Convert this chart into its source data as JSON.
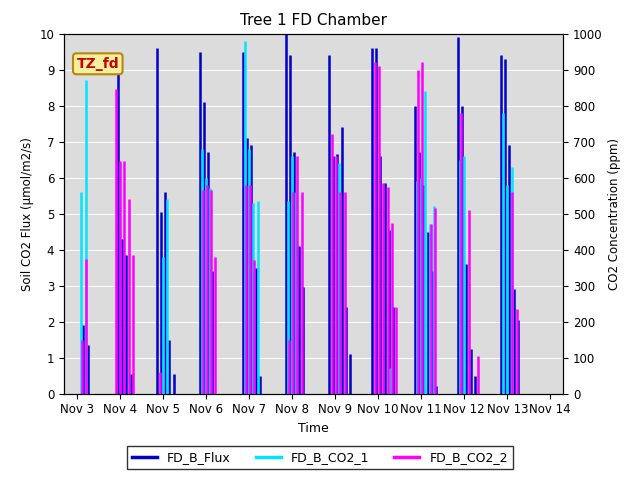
{
  "title": "Tree 1 FD Chamber",
  "xlabel": "Time",
  "ylabel_left": "Soil CO2 Flux (μmol/m2/s)",
  "ylabel_right": "CO2 Concentration (ppm)",
  "ylim_left": [
    0,
    10.0
  ],
  "ylim_right": [
    0,
    1000
  ],
  "plot_bg_color": "#dcdcdc",
  "fig_bg_color": "#ffffff",
  "annotation_text": "TZ_fd",
  "annotation_color": "#cc0000",
  "annotation_bg": "#f5f0a0",
  "annotation_border": "#b8860b",
  "flux_color": "#0000cc",
  "co2_1_color": "#00e5ff",
  "co2_2_color": "#ff00ff",
  "linewidth": 1.8,
  "x_tick_labels": [
    "Nov 3",
    "Nov 4",
    "Nov 5",
    "Nov 6",
    "Nov 7",
    "Nov 8",
    "Nov 9",
    "Nov 10",
    "Nov 11",
    "Nov 12",
    "Nov 13",
    "Nov 14"
  ],
  "x_tick_positions": [
    3,
    4,
    5,
    6,
    7,
    8,
    9,
    10,
    11,
    12,
    13,
    14
  ],
  "flux_data": [
    [
      3.05,
      0.0
    ],
    [
      3.15,
      1.9
    ],
    [
      3.25,
      1.35
    ],
    [
      3.35,
      0.0
    ],
    [
      3.85,
      0.0
    ],
    [
      3.95,
      9.15
    ],
    [
      4.05,
      4.3
    ],
    [
      4.15,
      3.85
    ],
    [
      4.25,
      0.55
    ],
    [
      4.75,
      0.0
    ],
    [
      4.85,
      9.6
    ],
    [
      4.95,
      5.05
    ],
    [
      5.05,
      5.6
    ],
    [
      5.15,
      1.5
    ],
    [
      5.25,
      0.55
    ],
    [
      5.75,
      0.0
    ],
    [
      5.85,
      9.5
    ],
    [
      5.95,
      8.1
    ],
    [
      6.05,
      6.7
    ],
    [
      6.15,
      3.4
    ],
    [
      6.25,
      0.0
    ],
    [
      6.75,
      0.0
    ],
    [
      6.85,
      9.5
    ],
    [
      6.95,
      7.1
    ],
    [
      7.05,
      6.9
    ],
    [
      7.15,
      3.5
    ],
    [
      7.25,
      0.5
    ],
    [
      7.75,
      0.0
    ],
    [
      7.85,
      10.0
    ],
    [
      7.95,
      9.4
    ],
    [
      8.05,
      6.7
    ],
    [
      8.15,
      4.1
    ],
    [
      8.25,
      2.95
    ],
    [
      8.75,
      0.0
    ],
    [
      8.85,
      9.4
    ],
    [
      8.95,
      6.6
    ],
    [
      9.05,
      6.65
    ],
    [
      9.15,
      7.4
    ],
    [
      9.25,
      2.4
    ],
    [
      9.35,
      1.1
    ],
    [
      9.75,
      0.0
    ],
    [
      9.85,
      9.6
    ],
    [
      9.95,
      9.6
    ],
    [
      10.05,
      6.6
    ],
    [
      10.15,
      5.85
    ],
    [
      10.25,
      4.55
    ],
    [
      10.35,
      2.4
    ],
    [
      10.75,
      0.0
    ],
    [
      10.85,
      8.0
    ],
    [
      10.95,
      6.7
    ],
    [
      11.05,
      5.8
    ],
    [
      11.15,
      4.5
    ],
    [
      11.25,
      3.4
    ],
    [
      11.35,
      0.2
    ],
    [
      11.75,
      0.0
    ],
    [
      11.85,
      9.9
    ],
    [
      11.95,
      8.0
    ],
    [
      12.05,
      3.6
    ],
    [
      12.15,
      1.25
    ],
    [
      12.25,
      0.5
    ],
    [
      12.75,
      0.0
    ],
    [
      12.85,
      9.4
    ],
    [
      12.95,
      9.3
    ],
    [
      13.05,
      6.9
    ],
    [
      13.15,
      2.9
    ],
    [
      13.25,
      2.05
    ]
  ],
  "co2_1_data": [
    [
      3.1,
      560
    ],
    [
      3.2,
      870
    ],
    [
      5.0,
      380
    ],
    [
      5.1,
      540
    ],
    [
      5.9,
      680
    ],
    [
      6.0,
      600
    ],
    [
      6.1,
      570
    ],
    [
      6.9,
      980
    ],
    [
      7.0,
      680
    ],
    [
      7.1,
      530
    ],
    [
      7.2,
      535
    ],
    [
      7.9,
      535
    ],
    [
      8.0,
      660
    ],
    [
      8.1,
      560
    ],
    [
      9.1,
      640
    ],
    [
      10.25,
      70
    ],
    [
      10.9,
      590
    ],
    [
      11.0,
      600
    ],
    [
      11.1,
      840
    ],
    [
      11.2,
      470
    ],
    [
      11.3,
      520
    ],
    [
      11.9,
      650
    ],
    [
      12.0,
      660
    ],
    [
      12.9,
      780
    ],
    [
      13.0,
      580
    ],
    [
      13.1,
      630
    ]
  ],
  "co2_2_data": [
    [
      3.12,
      150
    ],
    [
      3.22,
      375
    ],
    [
      3.9,
      845
    ],
    [
      4.0,
      645
    ],
    [
      4.1,
      645
    ],
    [
      4.2,
      540
    ],
    [
      4.3,
      385
    ],
    [
      4.92,
      60
    ],
    [
      5.92,
      565
    ],
    [
      6.02,
      580
    ],
    [
      6.12,
      565
    ],
    [
      6.22,
      380
    ],
    [
      6.92,
      580
    ],
    [
      7.02,
      580
    ],
    [
      7.12,
      370
    ],
    [
      7.92,
      150
    ],
    [
      8.02,
      560
    ],
    [
      8.12,
      660
    ],
    [
      8.22,
      560
    ],
    [
      8.92,
      720
    ],
    [
      9.02,
      660
    ],
    [
      9.12,
      560
    ],
    [
      9.22,
      560
    ],
    [
      9.92,
      920
    ],
    [
      10.02,
      910
    ],
    [
      10.12,
      585
    ],
    [
      10.22,
      575
    ],
    [
      10.32,
      475
    ],
    [
      10.42,
      240
    ],
    [
      10.92,
      900
    ],
    [
      11.02,
      920
    ],
    [
      11.22,
      470
    ],
    [
      11.32,
      515
    ],
    [
      11.92,
      780
    ],
    [
      12.12,
      510
    ],
    [
      12.32,
      105
    ],
    [
      13.12,
      560
    ],
    [
      13.22,
      235
    ]
  ]
}
